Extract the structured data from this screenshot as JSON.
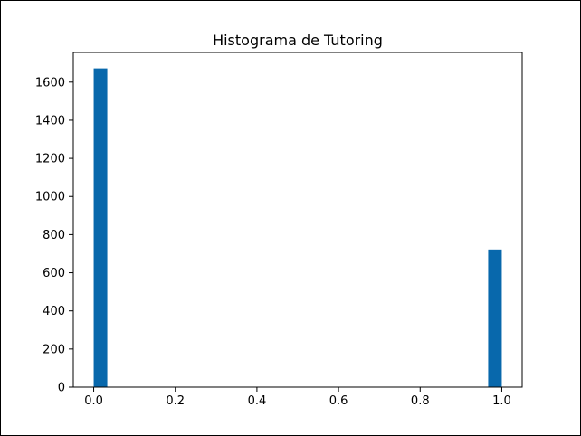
{
  "chart_data": {
    "type": "bar",
    "title": "Histograma de Tutoring",
    "xlabel": "",
    "ylabel": "",
    "bins": [
      {
        "x_start": 0.0,
        "x_end": 0.0333,
        "count": 1672
      },
      {
        "x_start": 0.9667,
        "x_end": 1.0,
        "count": 722
      }
    ],
    "xlim": [
      -0.05,
      1.05
    ],
    "ylim": [
      0,
      1755.6
    ],
    "x_ticks": [
      "0.0",
      "0.2",
      "0.4",
      "0.6",
      "0.8",
      "1.0"
    ],
    "y_ticks": [
      "0",
      "200",
      "400",
      "600",
      "800",
      "1000",
      "1200",
      "1400",
      "1600"
    ],
    "bar_color": "#0868ac",
    "grid": false,
    "legend": "none"
  }
}
